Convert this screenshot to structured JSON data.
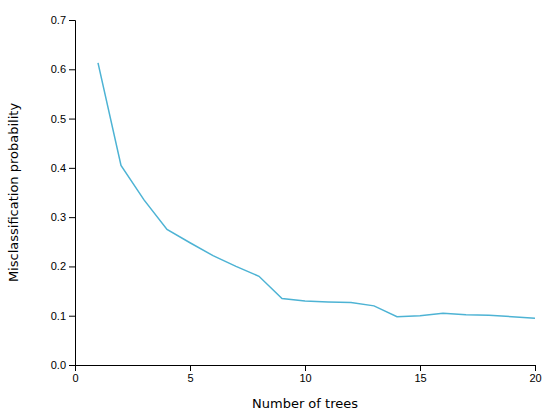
{
  "chart_data": {
    "type": "line",
    "xlabel": "Number of trees",
    "ylabel": "Misclassification probability",
    "x": [
      1,
      2,
      3,
      4,
      5,
      6,
      7,
      8,
      9,
      10,
      11,
      12,
      13,
      14,
      15,
      16,
      17,
      18,
      19,
      20
    ],
    "values": [
      0.613,
      0.405,
      0.335,
      0.275,
      0.248,
      0.222,
      0.2,
      0.18,
      0.135,
      0.13,
      0.128,
      0.127,
      0.12,
      0.098,
      0.1,
      0.105,
      0.102,
      0.101,
      0.098,
      0.095
    ],
    "color": "#4db3d4",
    "xlim": [
      0,
      20
    ],
    "ylim": [
      0,
      0.7
    ],
    "xticks": [
      0,
      5,
      10,
      15,
      20
    ],
    "yticks": [
      {
        "value": 0,
        "label": "0.0"
      },
      0.1,
      0.2,
      0.3,
      0.4,
      0.5,
      0.6,
      0.7
    ],
    "grid": false
  }
}
